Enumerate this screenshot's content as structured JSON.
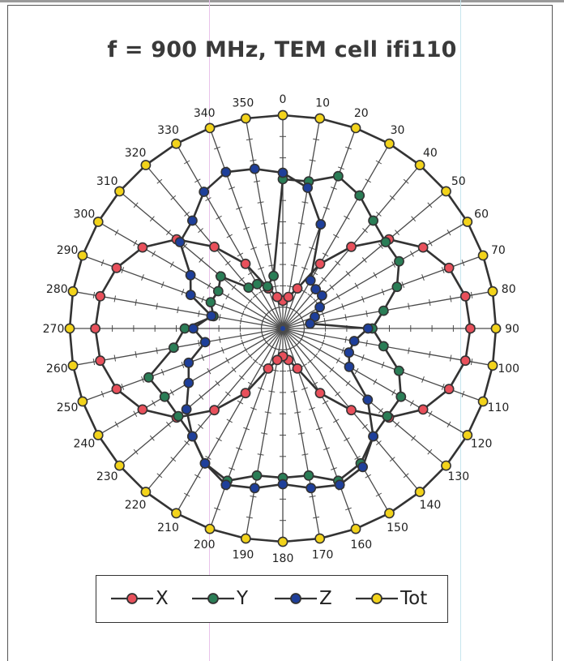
{
  "chart_data": {
    "type": "polar-line",
    "title": "f = 900 MHz, TEM cell ifi110",
    "angles": [
      0,
      10,
      20,
      30,
      40,
      50,
      60,
      70,
      80,
      90,
      100,
      110,
      120,
      130,
      140,
      150,
      160,
      170,
      180,
      190,
      200,
      210,
      220,
      230,
      240,
      250,
      260,
      270,
      280,
      290,
      300,
      310,
      320,
      330,
      340,
      350
    ],
    "angle_labels": [
      "0",
      "10",
      "20",
      "30",
      "40",
      "50",
      "60",
      "70",
      "80",
      "90",
      "100",
      "110",
      "120",
      "130",
      "140",
      "150",
      "160",
      "170",
      "180",
      "190",
      "200",
      "210",
      "220",
      "230",
      "240",
      "250",
      "260",
      "270",
      "280",
      "290",
      "300",
      "310",
      "320",
      "330",
      "340",
      "350"
    ],
    "rlim": [
      0,
      10
    ],
    "grid": "spokes with tick marks",
    "series": [
      {
        "name": "X",
        "color": "#e8505b",
        "values": [
          1.3,
          1.5,
          2.0,
          3.5,
          5.0,
          6.5,
          7.6,
          8.3,
          8.7,
          8.8,
          8.7,
          8.3,
          7.6,
          6.5,
          5.0,
          3.5,
          2.0,
          1.5,
          1.3,
          1.5,
          2.0,
          3.5,
          5.0,
          6.5,
          7.6,
          8.3,
          8.7,
          8.8,
          8.7,
          8.3,
          7.6,
          6.5,
          5.0,
          3.5,
          2.0,
          1.5
        ]
      },
      {
        "name": "Y",
        "color": "#2a7d56",
        "values": [
          7.0,
          7.0,
          7.6,
          7.2,
          6.6,
          6.3,
          6.3,
          5.7,
          4.8,
          4.2,
          4.8,
          5.8,
          6.4,
          6.4,
          6.6,
          7.3,
          7.6,
          7.0,
          7.0,
          7.0,
          7.6,
          7.3,
          6.6,
          6.4,
          6.4,
          6.7,
          5.2,
          4.6,
          3.3,
          3.6,
          3.5,
          3.8,
          2.5,
          2.4,
          2.1,
          2.5
        ]
      },
      {
        "name": "Z",
        "color": "#1e3f9a",
        "values": [
          7.3,
          6.7,
          5.2,
          2.6,
          2.4,
          2.4,
          2.0,
          1.6,
          1.3,
          4.0,
          3.4,
          3.3,
          3.6,
          5.2,
          6.6,
          7.5,
          7.8,
          7.6,
          7.3,
          7.6,
          7.8,
          7.3,
          6.6,
          5.9,
          5.1,
          4.7,
          3.7,
          4.2,
          3.4,
          4.6,
          5.0,
          6.3,
          6.6,
          7.4,
          7.8,
          7.6
        ]
      },
      {
        "name": "Tot",
        "color": "#f2d31b",
        "values": [
          10,
          10,
          10,
          10,
          10,
          10,
          10,
          10,
          10,
          10,
          10,
          10,
          10,
          10,
          10,
          10,
          10,
          10,
          10,
          10,
          10,
          10,
          10,
          10,
          10,
          10,
          10,
          10,
          10,
          10,
          10,
          10,
          10,
          10,
          10,
          10
        ]
      }
    ],
    "legend": {
      "position": "bottom",
      "entries": [
        "X",
        "Y",
        "Z",
        "Tot"
      ]
    }
  }
}
